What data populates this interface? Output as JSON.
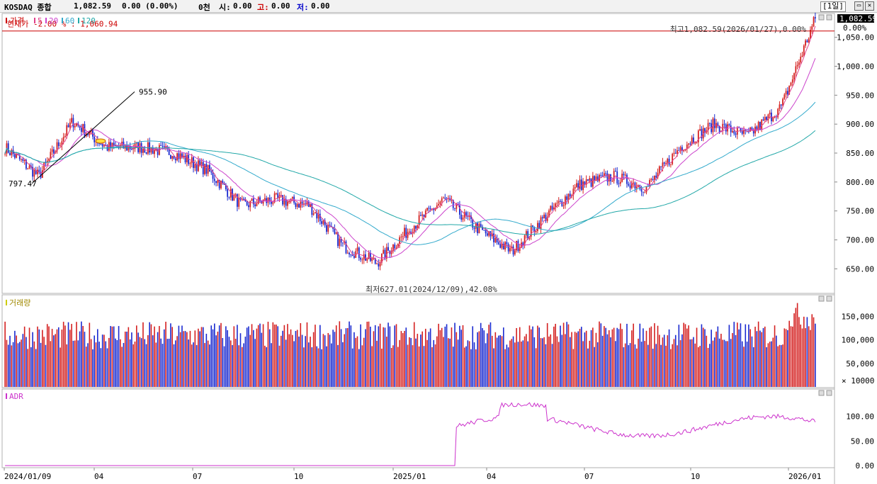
{
  "header": {
    "name": "KOSDAQ 종합",
    "price": "1,082.59",
    "change": "0.00 (0.00%)",
    "open_label": "시:",
    "open": "0.00",
    "high_label": "고:",
    "high": "0.00",
    "low_label": "저:",
    "low": "0.00",
    "volume": "0천",
    "period": "[1일]"
  },
  "price_panel": {
    "legend": [
      "가격",
      "5",
      "20",
      "60",
      "120"
    ],
    "legend_colors": [
      "#cc0000",
      "#e0408a",
      "#cc44cc",
      "#33aacc",
      "#22a8a8"
    ],
    "current_line_label": "현재가 -2.00 % : 1,060.94",
    "current_line_value": 1060.94,
    "last_price_box": "1,082.59",
    "last_change_box": "0.00%",
    "high_annotation": "최고1,082.59(2026/01/27),0.00%",
    "low_annotation": "최저627.01(2024/12/09),42.08%",
    "trendline_start_label": "797.47",
    "trendline_end_label": "955.90",
    "y_ticks": [
      "1,050.00",
      "1,000.00",
      "950.00",
      "900.00",
      "850.00",
      "800.00",
      "750.00",
      "700.00",
      "650.00"
    ]
  },
  "volume_panel": {
    "title": "거래량",
    "y_ticks": [
      "150,000",
      "100,000",
      "50,000"
    ],
    "unit": "× 10000"
  },
  "adr_panel": {
    "title": "ADR",
    "y_ticks": [
      "100.00",
      "50.00",
      "0.00"
    ]
  },
  "x_axis": {
    "labels": [
      "2024/01/09",
      "04",
      "07",
      "10",
      "2025/01",
      "04",
      "07",
      "10",
      "2026/01"
    ]
  },
  "chart_data": {
    "type": "line",
    "title": "KOSDAQ 종합",
    "x_range": [
      "2024/01/09",
      "2026/01/27"
    ],
    "ylim": [
      610,
      1090
    ],
    "price_close_approx": {
      "x": [
        "2024/01",
        "2024/02",
        "2024/03",
        "2024/04",
        "2024/05",
        "2024/06",
        "2024/07",
        "2024/08",
        "2024/09",
        "2024/10",
        "2024/11",
        "2024/12",
        "2025/01",
        "2025/02",
        "2025/03",
        "2025/04",
        "2025/05",
        "2025/06",
        "2025/07",
        "2025/08",
        "2025/09",
        "2025/10",
        "2025/11",
        "2025/12",
        "2026/01"
      ],
      "values": [
        860,
        810,
        905,
        860,
        860,
        850,
        820,
        760,
        770,
        760,
        690,
        660,
        720,
        770,
        720,
        680,
        740,
        795,
        810,
        790,
        860,
        900,
        880,
        930,
        1082.59
      ]
    },
    "high": {
      "value": 1082.59,
      "date": "2026/01/27"
    },
    "low": {
      "value": 627.01,
      "date": "2024/12/09"
    },
    "trendline": {
      "from": 797.47,
      "to": 955.9
    },
    "volume_ylim": [
      0,
      175000
    ],
    "adr_ylim": [
      0,
      140
    ],
    "adr_approx": {
      "x": [
        "2024/01",
        "2025/02",
        "2025/03",
        "2025/04",
        "2025/05",
        "2025/06",
        "2025/08",
        "2025/10",
        "2025/11",
        "2025/12",
        "2026/01"
      ],
      "values": [
        0,
        0,
        85,
        75,
        120,
        100,
        80,
        95,
        70,
        95,
        95
      ]
    }
  }
}
